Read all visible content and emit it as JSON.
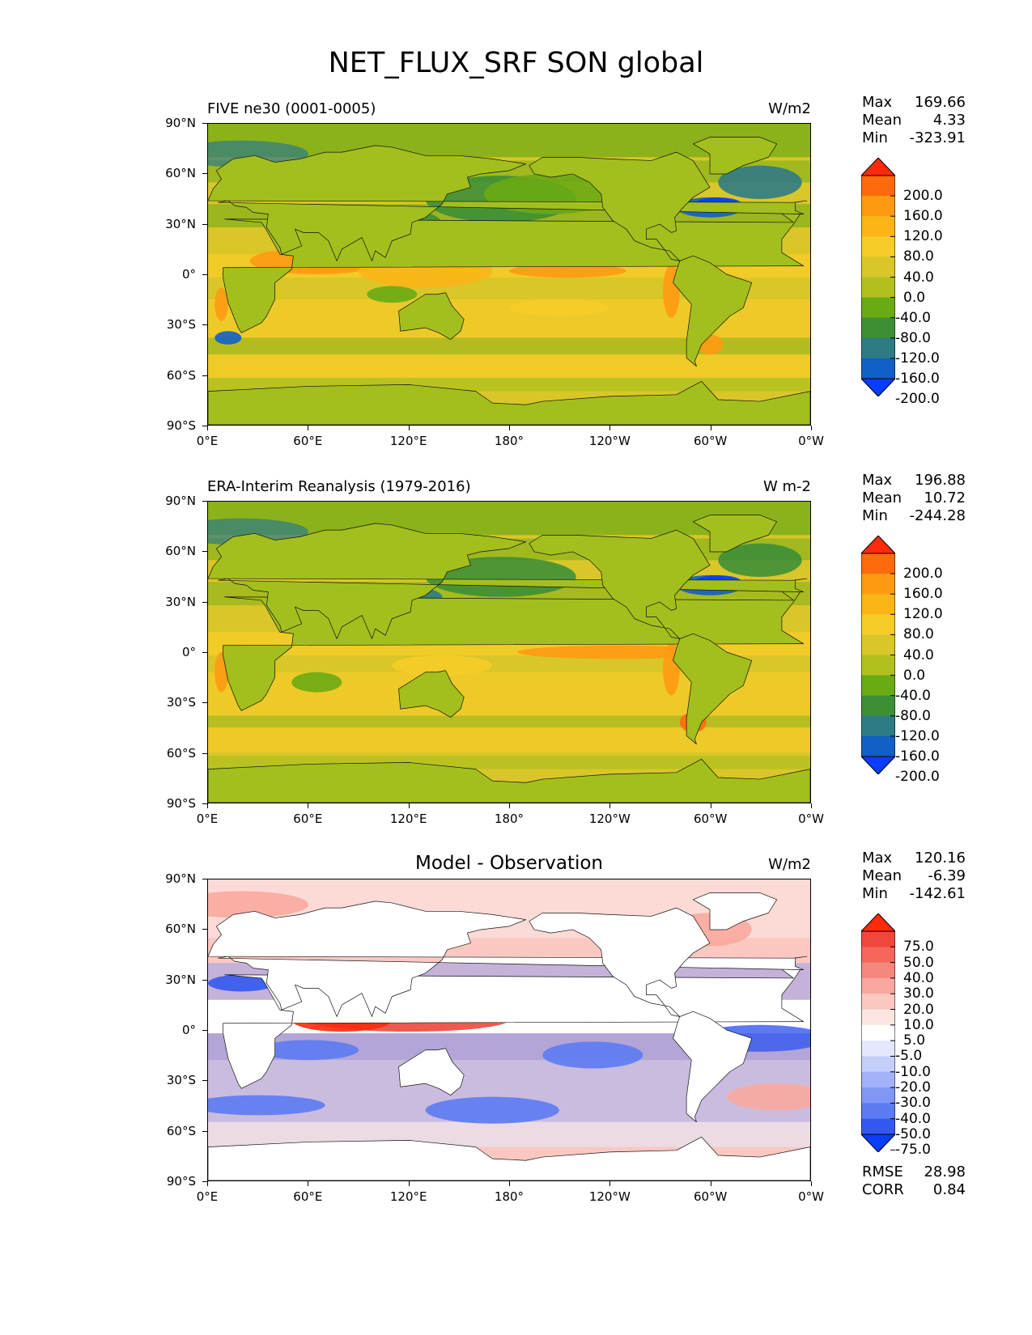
{
  "figure": {
    "title": "NET_FLUX_SRF SON global"
  },
  "chart_data": [
    {
      "type": "heatmap",
      "title_left": "FIVE ne30 (0001-0005)",
      "units": "W/m2",
      "stats": {
        "max_label": "Max",
        "max": "169.66",
        "mean_label": "Mean",
        "mean": "4.33",
        "min_label": "Min",
        "min": "-323.91"
      },
      "xlabels": [
        "0°E",
        "60°E",
        "120°E",
        "180°",
        "120°W",
        "60°W",
        "0°W"
      ],
      "ylabels": [
        "90°N",
        "60°N",
        "30°N",
        "0°",
        "30°S",
        "60°S",
        "90°S"
      ],
      "colorbar_levels": [
        "200.0",
        "160.0",
        "120.0",
        "80.0",
        "40.0",
        "0.0",
        "-40.0",
        "-80.0",
        "-120.0",
        "-160.0",
        "-200.0"
      ],
      "colorbar_colors": [
        "#ff2a0a",
        "#ff6a0c",
        "#fe9a12",
        "#fbb516",
        "#f6cc28",
        "#d9c629",
        "#b2c01f",
        "#6aaa14",
        "#3d8f36",
        "#2d7b84",
        "#1060c6",
        "#0a3dff"
      ]
    },
    {
      "type": "heatmap",
      "title_left": "ERA-Interim Reanalysis (1979-2016)",
      "units": "W m-2",
      "stats": {
        "max_label": "Max",
        "max": "196.88",
        "mean_label": "Mean",
        "mean": "10.72",
        "min_label": "Min",
        "min": "-244.28"
      },
      "xlabels": [
        "0°E",
        "60°E",
        "120°E",
        "180°",
        "120°W",
        "60°W",
        "0°W"
      ],
      "ylabels": [
        "90°N",
        "60°N",
        "30°N",
        "0°",
        "30°S",
        "60°S",
        "90°S"
      ],
      "colorbar_levels": [
        "200.0",
        "160.0",
        "120.0",
        "80.0",
        "40.0",
        "0.0",
        "-40.0",
        "-80.0",
        "-120.0",
        "-160.0",
        "-200.0"
      ],
      "colorbar_colors": [
        "#ff2a0a",
        "#ff6a0c",
        "#fe9a12",
        "#fbb516",
        "#f6cc28",
        "#d9c629",
        "#b2c01f",
        "#6aaa14",
        "#3d8f36",
        "#2d7b84",
        "#1060c6",
        "#0a3dff"
      ]
    },
    {
      "type": "heatmap",
      "title_center": "Model - Observation",
      "units": "W/m2",
      "stats": {
        "max_label": "Max",
        "max": "120.16",
        "mean_label": "Mean",
        "mean": "-6.39",
        "min_label": "Min",
        "min": "-142.61"
      },
      "xlabels": [
        "0°E",
        "60°E",
        "120°E",
        "180°",
        "120°W",
        "60°W",
        "0°W"
      ],
      "ylabels": [
        "90°N",
        "60°N",
        "30°N",
        "0°",
        "30°S",
        "60°S",
        "90°S"
      ],
      "colorbar_levels": [
        "75.0",
        "50.0",
        "40.0",
        "30.0",
        "20.0",
        "10.0",
        "5.0",
        "-5.0",
        "-10.0",
        "-20.0",
        "-30.0",
        "-40.0",
        "-50.0",
        "-75.0"
      ],
      "colorbar_colors": [
        "#ff2a0a",
        "#f0473a",
        "#f4675b",
        "#f6877c",
        "#f9a89f",
        "#fbc8c1",
        "#fde6e2",
        "#ffffff",
        "#e3e8fd",
        "#c4cffb",
        "#a3b2f8",
        "#8097f5",
        "#5c7bf2",
        "#3458ef",
        "#0a3dff"
      ],
      "metrics": {
        "rmse_label": "RMSE",
        "rmse": "28.98",
        "corr_label": "CORR",
        "corr": "0.84"
      }
    }
  ]
}
